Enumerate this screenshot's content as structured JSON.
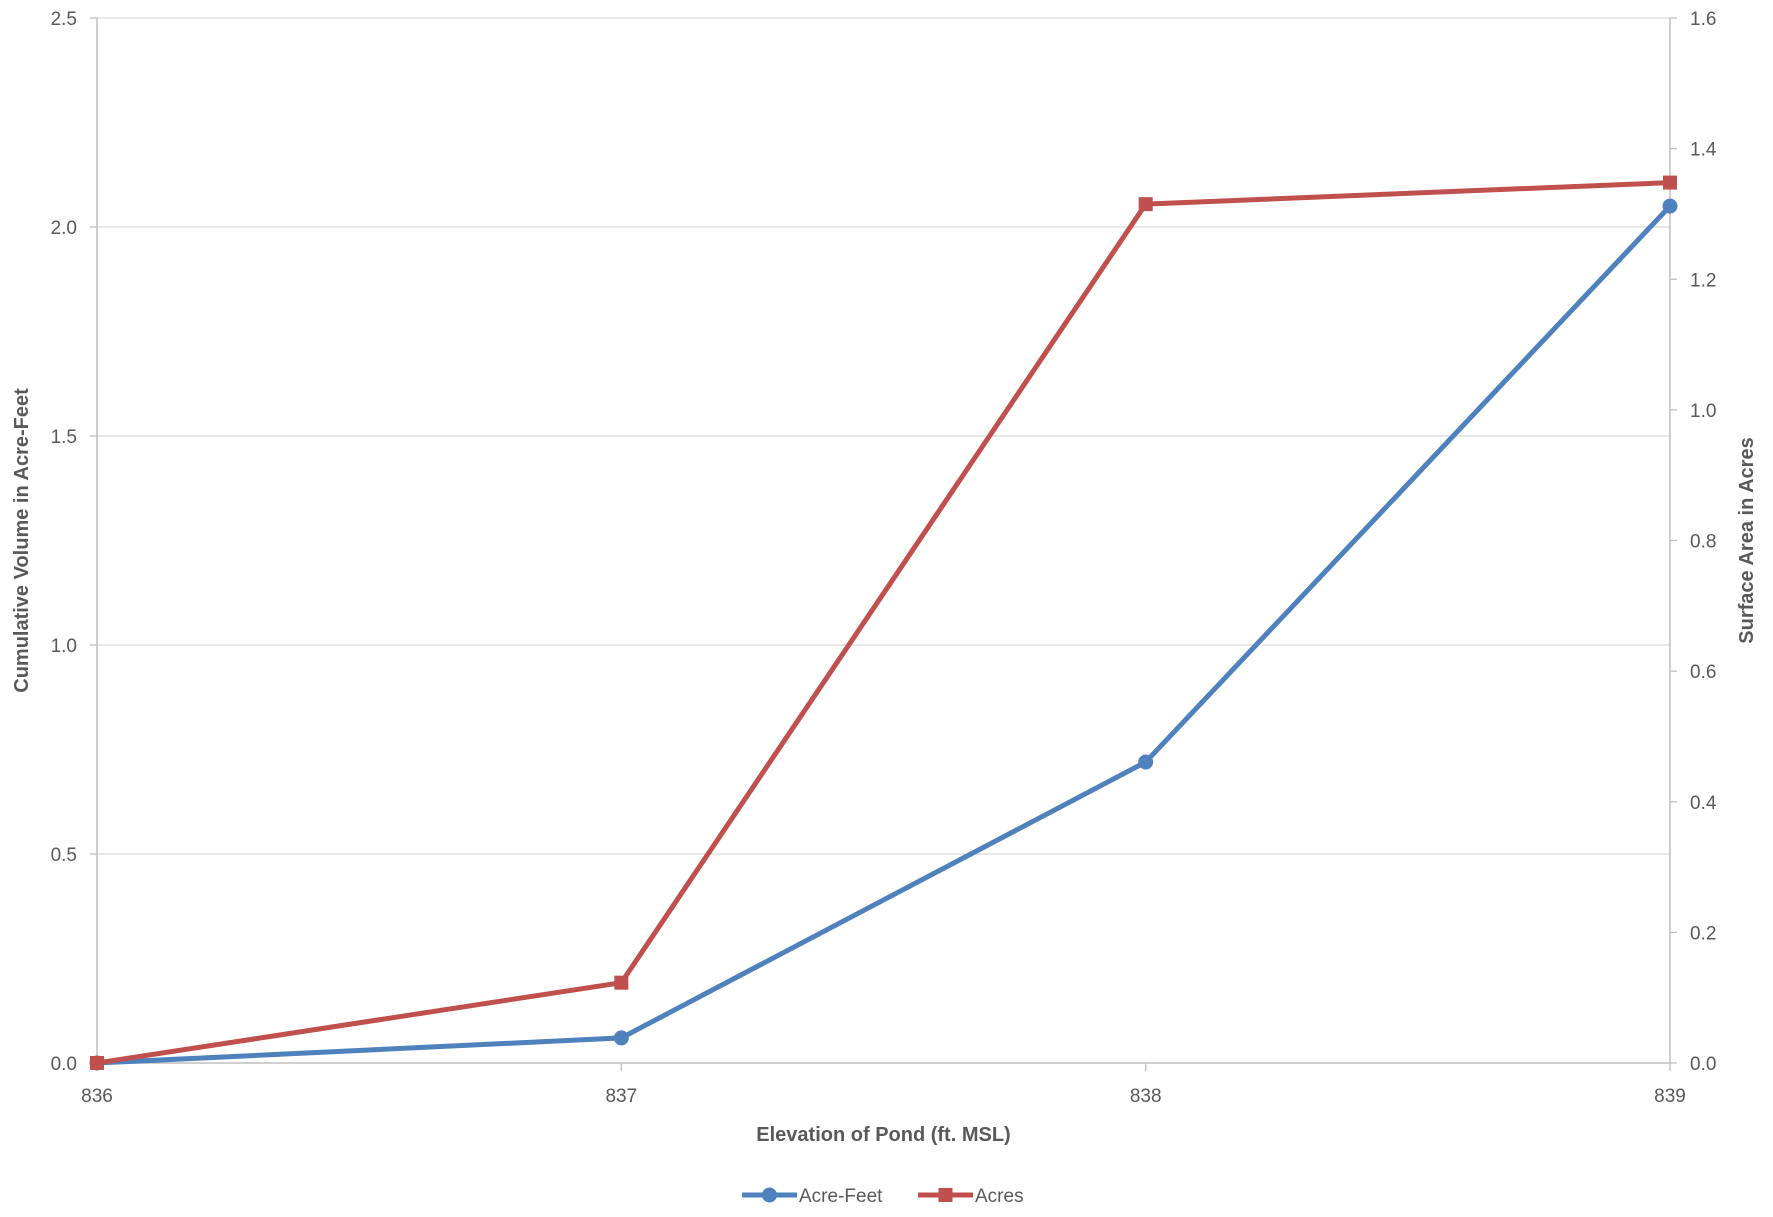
{
  "chart_data": {
    "type": "line",
    "title": "",
    "xlabel": "Elevation of Pond (ft. MSL)",
    "ylabel_left": "Cumulative Volume in Acre-Feet",
    "ylabel_right": "Surface Area in Acres",
    "x": [
      836,
      837,
      838,
      839
    ],
    "x_tick_labels": [
      "836",
      "837",
      "838",
      "839"
    ],
    "ylim_left": [
      0,
      2.5
    ],
    "ylim_right": [
      0,
      1.6
    ],
    "y_left_ticks": [
      "0.0",
      "0.5",
      "1.0",
      "1.5",
      "2.0",
      "2.5"
    ],
    "y_right_ticks": [
      "0.0",
      "0.2",
      "0.4",
      "0.6",
      "0.8",
      "1.0",
      "1.2",
      "1.4",
      "1.6"
    ],
    "grid": true,
    "legend_position": "bottom",
    "series": [
      {
        "name": "Acre-Feet",
        "axis": "left",
        "color": "#4F81BD",
        "marker": "circle",
        "values": [
          0.0,
          0.06,
          0.72,
          2.05
        ]
      },
      {
        "name": "Acres",
        "axis": "right",
        "color": "#C0504D",
        "marker": "square",
        "values": [
          0.0,
          0.123,
          1.315,
          1.348
        ]
      }
    ]
  }
}
